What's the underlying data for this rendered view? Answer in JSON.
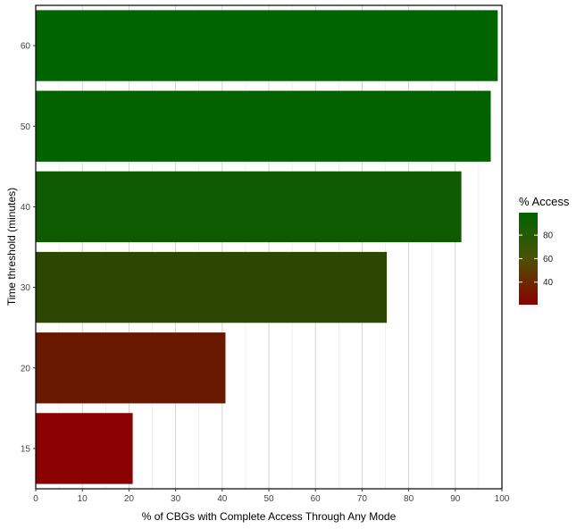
{
  "chart_data": {
    "type": "bar",
    "orientation": "horizontal",
    "title": "",
    "xlabel": "% of CBGs with Complete Access Through Any Mode",
    "ylabel": "Time threshold (minutes)",
    "categories": [
      "15",
      "20",
      "30",
      "40",
      "50",
      "60"
    ],
    "values": [
      20.8,
      40.7,
      75.3,
      91.3,
      97.6,
      99.1
    ],
    "xlim": [
      0,
      100
    ],
    "x_ticks": [
      0,
      10,
      20,
      30,
      40,
      50,
      60,
      70,
      80,
      90,
      100
    ],
    "grid": "vertical",
    "legend": {
      "title": "% Access",
      "placement": "right",
      "breaks": [
        40,
        60,
        80
      ],
      "range": [
        20.8,
        99.1
      ],
      "color_low": "#8b0000",
      "color_high": "#006400"
    }
  }
}
